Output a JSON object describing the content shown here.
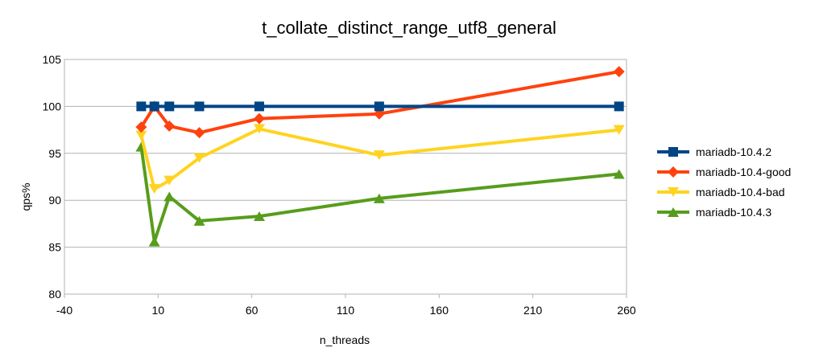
{
  "chart_data": {
    "type": "line",
    "title": "t_collate_distinct_range_utf8_general",
    "xlabel": "n_threads",
    "ylabel": "qps%",
    "xlim": [
      -40,
      260
    ],
    "ylim": [
      80,
      105
    ],
    "xticks": [
      -40,
      10,
      60,
      110,
      160,
      210,
      260
    ],
    "yticks": [
      80,
      85,
      90,
      95,
      100,
      105
    ],
    "grid": "horizontal",
    "legend_position": "right",
    "x": [
      1,
      8,
      16,
      32,
      64,
      128,
      256
    ],
    "series": [
      {
        "name": "mariadb-10.4.2",
        "color": "#004586",
        "marker": "square",
        "values": [
          100,
          100,
          100,
          100,
          100,
          100,
          100
        ]
      },
      {
        "name": "mariadb-10.4-good",
        "color": "#ff420e",
        "marker": "diamond",
        "values": [
          97.8,
          100,
          97.9,
          97.2,
          98.7,
          99.2,
          103.7
        ]
      },
      {
        "name": "mariadb-10.4-bad",
        "color": "#ffd320",
        "marker": "triangle-down",
        "values": [
          96.9,
          91.2,
          92.1,
          94.5,
          97.6,
          94.8,
          97.5
        ]
      },
      {
        "name": "mariadb-10.4.3",
        "color": "#579d1c",
        "marker": "triangle-up",
        "values": [
          95.7,
          85.6,
          90.4,
          87.8,
          88.3,
          90.2,
          92.8
        ]
      }
    ]
  }
}
